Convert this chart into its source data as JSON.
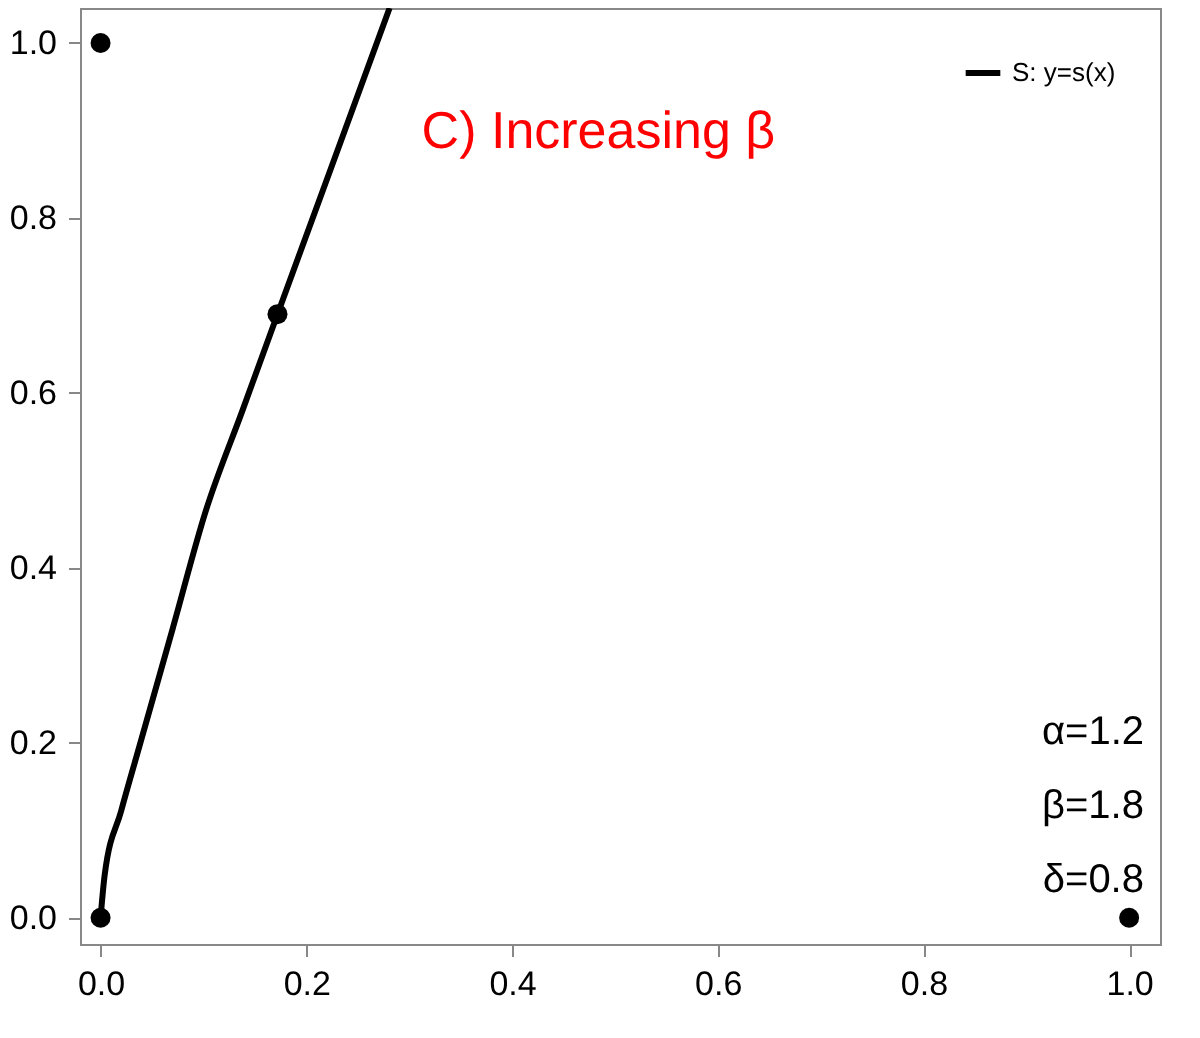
{
  "chart_data": {
    "type": "line",
    "title": "C) Increasing β",
    "annotations": [
      "α=1.2",
      "β=1.8",
      "δ=0.8"
    ],
    "xlim": [
      -0.02,
      1.03
    ],
    "ylim": [
      -0.03,
      1.04
    ],
    "xticks": [
      {
        "value": 0,
        "label": "0.0"
      },
      0.2,
      0.4,
      0.6,
      0.8,
      {
        "value": 1,
        "label": "1.0"
      }
    ],
    "yticks": [
      {
        "value": 0,
        "label": "0.0"
      },
      0.2,
      0.4,
      0.6,
      0.8,
      {
        "value": 1,
        "label": "1.0"
      }
    ],
    "grid": false,
    "legend": "top right",
    "series": [
      {
        "name": "S: y=s(x)",
        "color": "#000000",
        "x": [
          0,
          0.004,
          0.02,
          0.038,
          0.07,
          0.102,
          0.138,
          0.172,
          0.225,
          0.281
        ],
        "values": [
          0,
          0.049,
          0.122,
          0.197,
          0.33,
          0.464,
          0.58,
          0.69,
          0.86,
          1.04
        ]
      },
      {
        "type": "scatter",
        "marker": "circle",
        "color": "#000000",
        "x": [
          0,
          0.172,
          0,
          1
        ],
        "values": [
          1,
          0.69,
          0,
          0
        ]
      }
    ]
  }
}
